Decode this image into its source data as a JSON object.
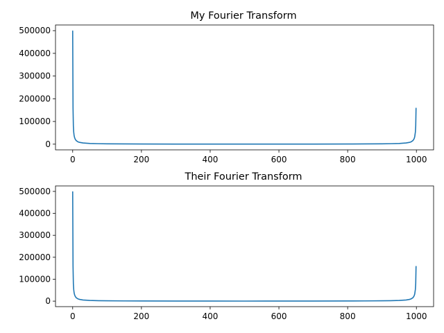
{
  "chart_data": [
    {
      "type": "line",
      "title": "My Fourier Transform",
      "xlabel": "",
      "ylabel": "",
      "xlim": [
        -50,
        1050
      ],
      "ylim": [
        -25000,
        525000
      ],
      "xticks": [
        0,
        200,
        400,
        600,
        800,
        1000
      ],
      "xtick_labels": [
        "0",
        "200",
        "400",
        "600",
        "800",
        "1000"
      ],
      "yticks": [
        0,
        100000,
        200000,
        300000,
        400000,
        500000
      ],
      "ytick_labels": [
        "0",
        "100000",
        "200000",
        "300000",
        "400000",
        "500000"
      ],
      "grid": false,
      "color": "#1f77b4",
      "series": [
        {
          "x": [
            0,
            1,
            2,
            3,
            4,
            5,
            7,
            10,
            15,
            20,
            30,
            50,
            75,
            100,
            150,
            200,
            300,
            400,
            500,
            600,
            700,
            800,
            850,
            900,
            925,
            950,
            970,
            980,
            985,
            990,
            993,
            995,
            997,
            998,
            999
          ],
          "values": [
            500000,
            160000,
            80000,
            53000,
            40000,
            32000,
            23000,
            16000,
            10600,
            8000,
            5300,
            3200,
            2100,
            1600,
            1050,
            800,
            530,
            400,
            320,
            400,
            530,
            800,
            1070,
            1600,
            2130,
            3200,
            5330,
            8000,
            10700,
            16000,
            22900,
            32000,
            53300,
            80000,
            160000
          ]
        }
      ]
    },
    {
      "type": "line",
      "title": "Their Fourier Transform",
      "xlabel": "",
      "ylabel": "",
      "xlim": [
        -50,
        1050
      ],
      "ylim": [
        -25000,
        525000
      ],
      "xticks": [
        0,
        200,
        400,
        600,
        800,
        1000
      ],
      "xtick_labels": [
        "0",
        "200",
        "400",
        "600",
        "800",
        "1000"
      ],
      "yticks": [
        0,
        100000,
        200000,
        300000,
        400000,
        500000
      ],
      "ytick_labels": [
        "0",
        "100000",
        "200000",
        "300000",
        "400000",
        "500000"
      ],
      "grid": false,
      "color": "#1f77b4",
      "series": [
        {
          "x": [
            0,
            1,
            2,
            3,
            4,
            5,
            7,
            10,
            15,
            20,
            30,
            50,
            75,
            100,
            150,
            200,
            300,
            400,
            500,
            600,
            700,
            800,
            850,
            900,
            925,
            950,
            970,
            980,
            985,
            990,
            993,
            995,
            997,
            998,
            999
          ],
          "values": [
            500000,
            160000,
            80000,
            53000,
            40000,
            32000,
            23000,
            16000,
            10600,
            8000,
            5300,
            3200,
            2100,
            1600,
            1050,
            800,
            530,
            400,
            320,
            400,
            530,
            800,
            1070,
            1600,
            2130,
            3200,
            5330,
            8000,
            10700,
            16000,
            22900,
            32000,
            53300,
            80000,
            160000
          ]
        }
      ]
    }
  ]
}
